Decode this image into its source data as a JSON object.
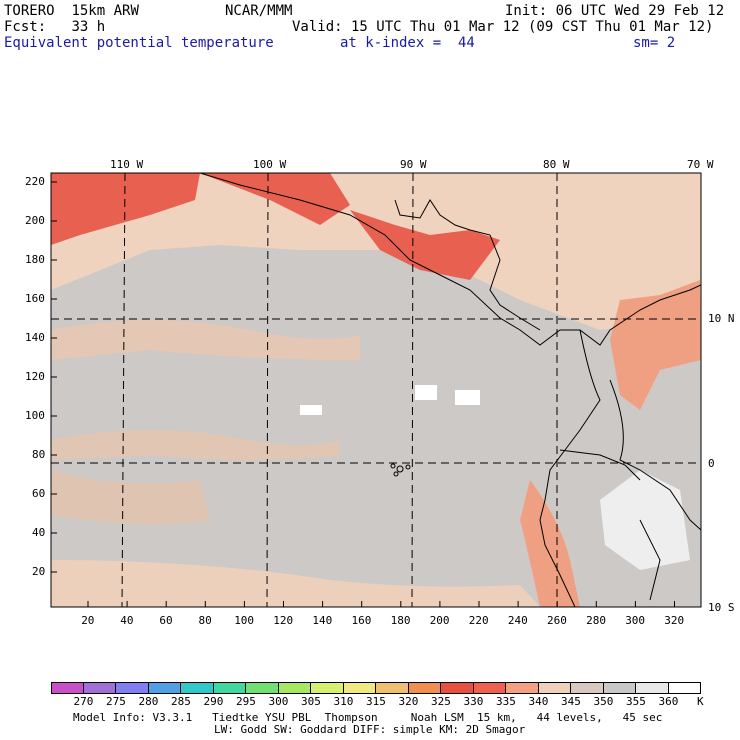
{
  "header": {
    "model": "TORERO",
    "resolution": "15km ARW",
    "org": "NCAR/MMM",
    "init": "Init: 06 UTC Wed 29 Feb 12",
    "fcst_label": "Fcst:",
    "fcst_value": "33 h",
    "valid": "Valid: 15 UTC Thu 01 Mar 12 (09 CST Thu 01 Mar 12)",
    "field": "Equivalent potential temperature",
    "level": "at k-index =  44",
    "smoothing": "sm= 2"
  },
  "axes": {
    "bottom_ticks": [
      "20",
      "40",
      "60",
      "80",
      "100",
      "120",
      "140",
      "160",
      "180",
      "200",
      "220",
      "240",
      "260",
      "280",
      "300",
      "320"
    ],
    "left_ticks": [
      "20",
      "40",
      "60",
      "80",
      "100",
      "120",
      "140",
      "160",
      "180",
      "200",
      "220"
    ],
    "top_lon_labels": [
      "110 W",
      "100 W",
      "90 W",
      "80 W",
      "70 W"
    ],
    "right_lat_labels": [
      "10 N",
      "0",
      "10 S"
    ]
  },
  "colorbar": {
    "labels": [
      "270",
      "275",
      "280",
      "285",
      "290",
      "295",
      "300",
      "305",
      "310",
      "315",
      "320",
      "325",
      "330",
      "335",
      "340",
      "345",
      "350",
      "355",
      "360"
    ],
    "unit": "K",
    "colors": [
      "#c84fc8",
      "#a070d8",
      "#8080f0",
      "#50a0e8",
      "#30c8c8",
      "#40d8a0",
      "#70e070",
      "#a8e860",
      "#d8f070",
      "#f0e880",
      "#f0c070",
      "#f09050",
      "#e85040",
      "#f06050",
      "#f4a080",
      "#f0d0b8",
      "#d8c8c0",
      "#c8c8c8",
      "#e8e8e8",
      "#ffffff"
    ]
  },
  "footer": {
    "line1": "Model Info: V3.3.1   Tiedtke YSU PBL  Thompson     Noah LSM  15 km,   44 levels,   45 sec",
    "line2": "LW: Godd SW: Goddard DIFF: simple KM: 2D Smagor"
  }
}
